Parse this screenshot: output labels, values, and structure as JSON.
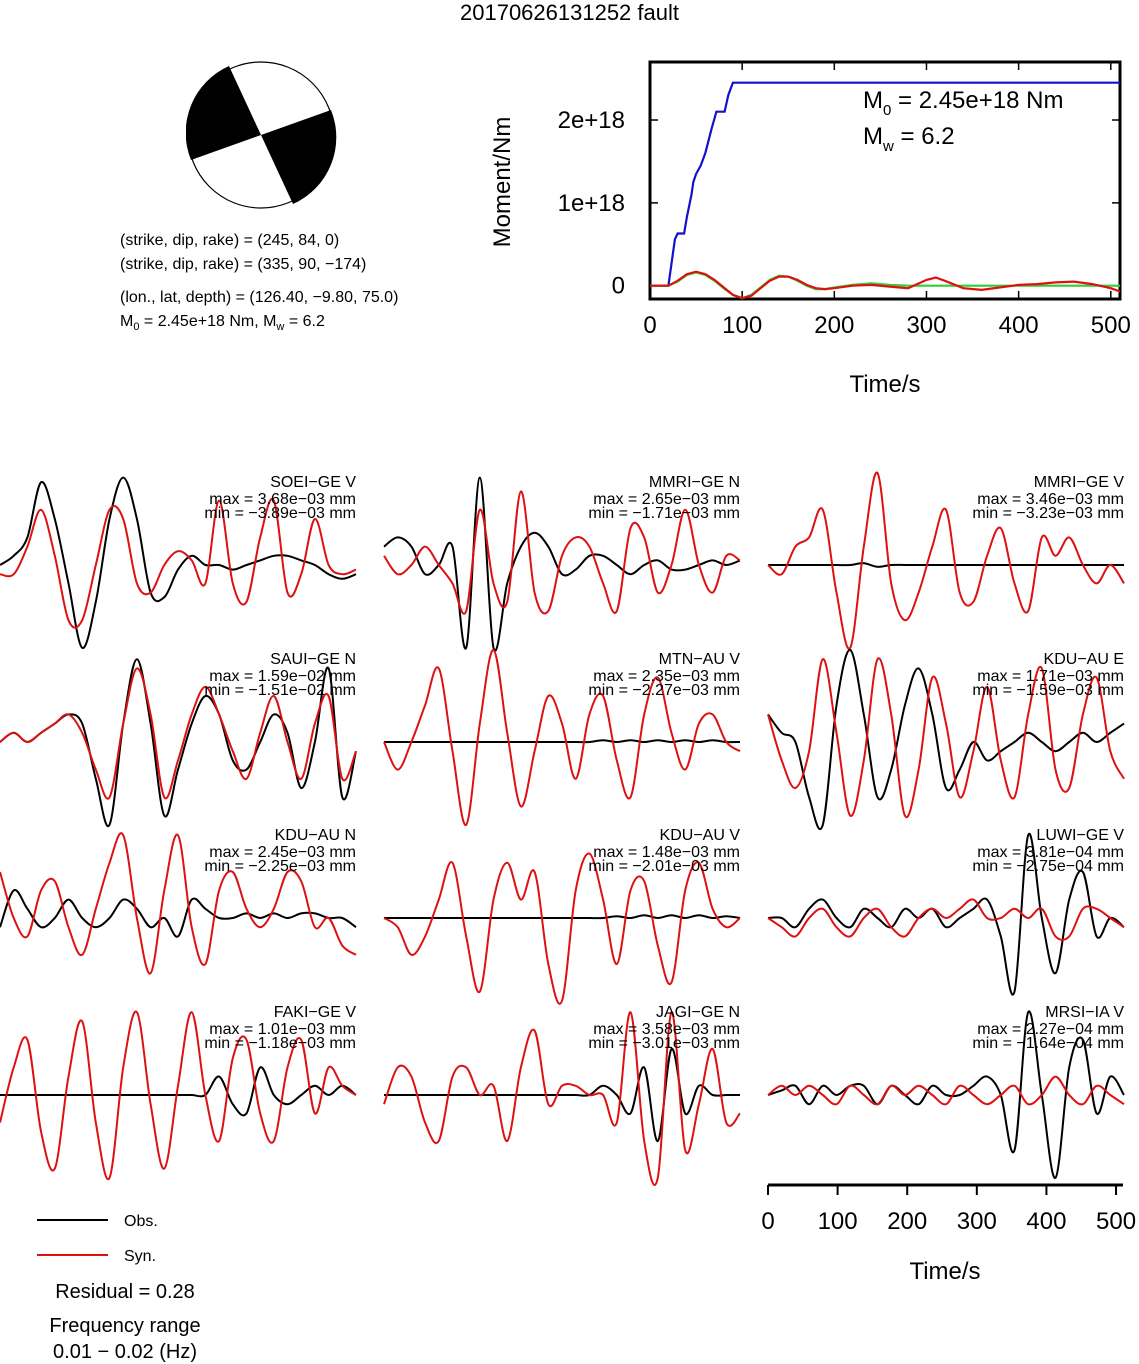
{
  "title": "20170626131252 fault",
  "focal": {
    "line1": "(strike, dip, rake) = (245, 84, 0)",
    "line2": "(strike, dip, rake) = (335, 90, −174)",
    "line3": "(lon., lat, depth) = (126.40, −9.80, 75.0)",
    "m0_prefix": "M",
    "m0_sub": "0",
    "m0_rest": " = 2.45e+18 Nm, M",
    "mw_sub": "w",
    "mw_rest": " = 6.2"
  },
  "moment_plot": {
    "ylabel": "Moment/Nm",
    "xlabel": "Time/s",
    "xticks": [
      "0",
      "100",
      "200",
      "300",
      "400",
      "500"
    ],
    "yticks": [
      "0",
      "1e+18",
      "2e+18"
    ],
    "m0_label_prefix": "M",
    "m0_label_sub": "0",
    "m0_label_value": " = 2.45e+18 Nm",
    "mw_label_prefix": "M",
    "mw_label_sub": "w",
    "mw_label_value": " = 6.2"
  },
  "colors": {
    "obs": "#000000",
    "syn": "#dd1111",
    "cumulative": "#1111cc",
    "green_rate": "#33cc33",
    "beach_fill": "#000000"
  },
  "stations": [
    {
      "name": "SOEI−GE V",
      "max": "max = 3.68e−03 mm",
      "min": "min = −3.89e−03 mm"
    },
    {
      "name": "MMRI−GE N",
      "max": "max = 2.65e−03 mm",
      "min": "min = −1.71e−03 mm"
    },
    {
      "name": "MMRI−GE V",
      "max": "max = 3.46e−03 mm",
      "min": "min = −3.23e−03 mm"
    },
    {
      "name": "SAUI−GE N",
      "max": "max = 1.59e−02 mm",
      "min": "min = −1.51e−02 mm"
    },
    {
      "name": "MTN−AU V",
      "max": "max = 2.35e−03 mm",
      "min": "min = −2.27e−03 mm"
    },
    {
      "name": "KDU−AU E",
      "max": "max = 1.71e−03 mm",
      "min": "min = −1.59e−03 mm"
    },
    {
      "name": "KDU−AU N",
      "max": "max = 2.45e−03 mm",
      "min": "min = −2.25e−03 mm"
    },
    {
      "name": "KDU−AU V",
      "max": "max = 1.48e−03 mm",
      "min": "min = −2.01e−03 mm"
    },
    {
      "name": "LUWI−GE V",
      "max": "max = 3.81e−04 mm",
      "min": "min = −2.75e−04 mm"
    },
    {
      "name": "FAKI−GE V",
      "max": "max = 1.01e−03 mm",
      "min": "min = −1.18e−03 mm"
    },
    {
      "name": "JAGI−GE N",
      "max": "max = 3.58e−03 mm",
      "min": "min = −3.01e−03 mm"
    },
    {
      "name": "MRSI−IA V",
      "max": "max = 2.27e−04 mm",
      "min": "min = −1.64e−04 mm"
    }
  ],
  "waveform_axis": {
    "xticks": [
      "0",
      "100",
      "200",
      "300",
      "400",
      "500"
    ],
    "xlabel": "Time/s"
  },
  "legend": {
    "obs": "Obs.",
    "syn": "Syn."
  },
  "footer": {
    "residual": "Residual = 0.28",
    "freq_label": "Frequency range",
    "freq_value": "0.01 − 0.02 (Hz)"
  },
  "chart_data": [
    {
      "type": "line",
      "title": "",
      "xlabel": "Time/s",
      "ylabel": "Moment/Nm",
      "xlim": [
        0,
        510
      ],
      "ylim": [
        -1.6e+17,
        2.7e+18
      ],
      "series": [
        {
          "name": "",
          "x": [
            0,
            20,
            27,
            30,
            37,
            40,
            45,
            47,
            50,
            55,
            60,
            67,
            72,
            76,
            81,
            85,
            90,
            510
          ],
          "y": [
            0,
            0,
            5.6e+17,
            6.3e+17,
            6.3e+17,
            8.3e+17,
            1.1e+18,
            1.25e+18,
            1.35e+18,
            1.45e+18,
            1.6e+18,
            1.9e+18,
            2.1e+18,
            2.1e+18,
            2.1e+18,
            2.3e+18,
            2.45e+18,
            2.45e+18
          ]
        },
        {
          "name": "",
          "x": [
            0,
            20,
            30,
            40,
            50,
            60,
            70,
            80,
            90,
            100,
            110,
            120,
            130,
            140,
            150,
            160,
            170,
            180,
            190,
            200,
            220,
            240,
            260,
            280,
            300,
            320,
            340,
            360,
            380,
            400,
            420,
            440,
            460,
            480,
            500,
            510
          ],
          "y": [
            0,
            0,
            5e+16,
            1.3e+17,
            1.6e+17,
            1.3e+17,
            6e+16,
            -3e+16,
            -1.1e+17,
            -1.5e+17,
            -1.1e+17,
            -2e+16,
            7e+16,
            1.2e+17,
            1.1e+17,
            6e+16,
            0,
            -4e+16,
            -4e+16,
            -2e+16,
            1e+16,
            3e+16,
            1e+16,
            0,
            0,
            0,
            0,
            0,
            0,
            0,
            0,
            0,
            0,
            0,
            0,
            0
          ]
        },
        {
          "name": "",
          "x": [
            0,
            20,
            30,
            40,
            50,
            60,
            70,
            80,
            90,
            100,
            110,
            120,
            130,
            140,
            150,
            160,
            170,
            180,
            190,
            200,
            220,
            240,
            260,
            280,
            300,
            310,
            320,
            340,
            360,
            380,
            400,
            420,
            440,
            460,
            480,
            500,
            510
          ],
          "y": [
            0,
            0,
            6e+16,
            1.4e+17,
            1.7e+17,
            1.4e+17,
            7e+16,
            -2e+16,
            -1.1e+17,
            -1.5e+17,
            -1.2e+17,
            -3e+16,
            6e+16,
            1.1e+17,
            1.1e+17,
            7e+16,
            1e+16,
            -3e+16,
            -4e+16,
            -3e+16,
            0,
            1e+16,
            -1e+16,
            -3e+16,
            7e+16,
            1e+17,
            6e+16,
            -3e+16,
            -5e+16,
            -2e+16,
            1e+16,
            2e+16,
            4e+16,
            5e+16,
            2e+16,
            -3e+16,
            -7e+16
          ]
        }
      ]
    },
    {
      "type": "line",
      "title": "",
      "xlabel": "Time/s",
      "ylabel": "",
      "xlim": [
        0,
        510
      ],
      "panels": [
        {
          "station": "SOEI−GE V",
          "obs": [
            0,
            0.1,
            0.3,
            0.9,
            0.5,
            -0.2,
            -0.9,
            -0.4,
            0.5,
            0.95,
            0.5,
            -0.3,
            -0.35,
            -0.05,
            0.1,
            0.0,
            0.0,
            -0.05,
            0.0,
            0.05,
            0.1,
            0.1,
            0.05,
            0.0,
            -0.1,
            -0.15,
            -0.1
          ],
          "syn": [
            -0.1,
            -0.1,
            0.2,
            0.6,
            0.1,
            -0.6,
            -0.6,
            0.0,
            0.6,
            0.5,
            -0.2,
            -0.3,
            0.0,
            0.15,
            0.05,
            -0.2,
            0.7,
            -0.2,
            -0.4,
            0.3,
            0.7,
            -0.3,
            -0.1,
            0.5,
            0.0,
            -0.1,
            -0.05
          ]
        },
        {
          "station": "MMRI−GE N",
          "obs": [
            0.2,
            0.3,
            0.2,
            -0.1,
            0.0,
            0.2,
            -0.9,
            0.95,
            -0.9,
            -0.2,
            0.2,
            0.35,
            0.2,
            -0.1,
            -0.05,
            0.1,
            0.1,
            0.0,
            -0.1,
            0.0,
            0.05,
            -0.05,
            -0.05,
            0.0,
            0.05,
            0.0,
            0.05
          ],
          "syn": [
            0.1,
            -0.1,
            0.0,
            0.2,
            0.0,
            -0.2,
            -0.5,
            0.6,
            -0.2,
            -0.4,
            0.8,
            -0.3,
            -0.5,
            0.1,
            0.3,
            0.2,
            -0.2,
            -0.5,
            0.4,
            0.3,
            -0.3,
            0.0,
            0.6,
            0.0,
            -0.3,
            0.1,
            0.05
          ]
        },
        {
          "station": "MMRI−GE V",
          "obs": [
            0,
            0,
            0,
            0,
            0,
            0,
            0,
            0.02,
            -0.02,
            0,
            0,
            0,
            0,
            0,
            0,
            0,
            0,
            0,
            0,
            0,
            0,
            0,
            0,
            0,
            0,
            0,
            0
          ],
          "syn": [
            0,
            -0.1,
            0.2,
            0.3,
            0.6,
            -0.3,
            -0.9,
            0.2,
            1.0,
            -0.2,
            -0.6,
            -0.3,
            0.2,
            0.6,
            -0.3,
            -0.4,
            0.1,
            0.4,
            -0.2,
            -0.5,
            0.3,
            0.1,
            0.3,
            0.0,
            -0.2,
            0.0,
            -0.2
          ]
        },
        {
          "station": "SAUI−GE N",
          "obs": [
            0,
            0.1,
            0.0,
            0.1,
            0.2,
            0.3,
            0.2,
            -0.4,
            -0.9,
            0.2,
            0.9,
            0.2,
            -0.8,
            -0.3,
            0.2,
            0.5,
            0.3,
            -0.2,
            -0.3,
            0.0,
            0.3,
            0.1,
            -0.5,
            0.0,
            0.8,
            -0.6,
            -0.1
          ],
          "syn": [
            0,
            0.1,
            0.0,
            0.1,
            0.2,
            0.3,
            0.1,
            -0.3,
            -0.6,
            0.2,
            0.8,
            0.3,
            -0.6,
            -0.2,
            0.3,
            0.6,
            0.3,
            -0.1,
            -0.4,
            0.1,
            0.5,
            0.0,
            -0.4,
            0.2,
            0.5,
            -0.4,
            -0.1
          ]
        },
        {
          "station": "MTN−AU V",
          "obs": [
            0,
            0,
            0,
            0,
            0,
            0,
            0,
            0,
            0,
            0,
            0,
            0,
            0,
            0,
            0,
            0,
            0.02,
            0,
            0.02,
            0,
            0.02,
            0,
            0.02,
            0,
            0.02,
            0,
            0
          ],
          "syn": [
            0,
            -0.3,
            0.0,
            0.4,
            0.8,
            -0.1,
            -0.9,
            0.2,
            1.0,
            0.1,
            -0.7,
            -0.1,
            0.5,
            0.2,
            -0.4,
            0.3,
            0.5,
            -0.2,
            -0.6,
            0.3,
            0.7,
            0.1,
            -0.3,
            0.2,
            0.3,
            0.0,
            -0.1
          ]
        },
        {
          "station": "KDU−AU E",
          "obs": [
            0.3,
            0.1,
            0.0,
            -0.6,
            -0.9,
            0.4,
            1.0,
            0.3,
            -0.6,
            -0.3,
            0.4,
            0.8,
            0.3,
            -0.5,
            -0.3,
            0.0,
            -0.2,
            -0.1,
            0.0,
            0.1,
            0.0,
            -0.1,
            0.0,
            0.1,
            0.0,
            0.1,
            0.2
          ],
          "syn": [
            0.3,
            -0.2,
            -0.5,
            -0.1,
            0.9,
            0.1,
            -0.8,
            -0.2,
            0.9,
            0.3,
            -0.8,
            -0.3,
            0.7,
            0.2,
            -0.6,
            -0.1,
            0.6,
            -0.2,
            -0.6,
            0.3,
            0.8,
            -0.3,
            -0.5,
            0.3,
            0.7,
            -0.1,
            -0.4
          ]
        },
        {
          "station": "KDU−AU N",
          "obs": [
            -0.1,
            0.3,
            0.1,
            -0.1,
            0.0,
            0.2,
            0.0,
            -0.1,
            0.0,
            0.2,
            0.1,
            -0.1,
            0.0,
            -0.2,
            0.2,
            0.1,
            0.0,
            0.0,
            0.05,
            0.0,
            0.05,
            0.0,
            0.05,
            0.05,
            0.0,
            0.0,
            -0.1
          ],
          "syn": [
            0.5,
            0.0,
            -0.2,
            0.3,
            0.4,
            -0.1,
            -0.4,
            0.1,
            0.6,
            0.9,
            0.0,
            -0.6,
            0.3,
            0.9,
            -0.1,
            -0.5,
            0.3,
            0.5,
            0.1,
            -0.1,
            0.1,
            0.5,
            0.4,
            -0.1,
            0.0,
            -0.3,
            -0.4
          ]
        },
        {
          "station": "KDU−AU V",
          "obs": [
            0,
            0,
            0,
            0,
            0,
            0,
            0,
            0,
            0,
            0,
            0,
            0,
            0,
            0,
            0,
            0,
            0,
            0.02,
            0,
            0.03,
            0,
            0.03,
            0,
            0.03,
            0,
            0.02,
            0
          ],
          "syn": [
            0,
            -0.1,
            -0.4,
            -0.2,
            0.2,
            0.6,
            -0.2,
            -0.8,
            0.2,
            0.6,
            0.2,
            0.5,
            -0.5,
            -0.9,
            0.3,
            0.7,
            0.2,
            -0.5,
            0.3,
            0.4,
            -0.3,
            -0.7,
            0.3,
            0.6,
            0.1,
            -0.1,
            0.0
          ]
        },
        {
          "station": "LUWI−GE V",
          "obs": [
            0,
            0.0,
            -0.1,
            0.1,
            0.2,
            0.0,
            -0.1,
            0.1,
            0.0,
            -0.1,
            0.1,
            0.0,
            0.1,
            -0.1,
            0.0,
            0.1,
            0.2,
            -0.2,
            -0.8,
            0.9,
            0.0,
            -0.6,
            0.2,
            0.5,
            -0.2,
            0.0,
            -0.1
          ],
          "syn": [
            0,
            -0.1,
            -0.2,
            0.0,
            0.1,
            -0.1,
            -0.2,
            0.0,
            0.1,
            -0.1,
            -0.2,
            0.0,
            0.1,
            0.0,
            0.1,
            0.2,
            0.0,
            0.0,
            0.1,
            0.0,
            0.1,
            -0.2,
            -0.2,
            0.1,
            0.1,
            0.0,
            -0.1
          ]
        },
        {
          "station": "FAKI−GE V",
          "obs": [
            0,
            0,
            0,
            0,
            0,
            0,
            0,
            0,
            0,
            0,
            0,
            0,
            0,
            0,
            0,
            0.0,
            0.2,
            -0.1,
            -0.2,
            0.3,
            0.0,
            -0.1,
            0.0,
            0.1,
            0.0,
            0.1,
            0.0
          ],
          "syn": [
            -0.3,
            0.3,
            0.6,
            -0.4,
            -0.8,
            0.2,
            0.8,
            -0.3,
            -0.9,
            0.3,
            0.9,
            -0.1,
            -0.8,
            0.1,
            0.9,
            0.0,
            -0.5,
            0.4,
            0.6,
            -0.2,
            -0.5,
            0.3,
            0.6,
            -0.2,
            0.3,
            0.1,
            0.0
          ]
        },
        {
          "station": "JAGI−GE N",
          "obs": [
            0,
            0,
            0,
            0,
            0,
            0,
            0,
            0,
            0,
            0,
            0,
            0,
            0,
            0,
            0,
            0.0,
            0.1,
            0.0,
            -0.2,
            0.3,
            -0.5,
            0.5,
            -0.2,
            0.1,
            0.0,
            0.0,
            0.0
          ],
          "syn": [
            -0.1,
            0.3,
            0.2,
            -0.3,
            -0.5,
            0.2,
            0.3,
            0.0,
            0.1,
            -0.5,
            0.3,
            0.7,
            -0.1,
            0.1,
            0.1,
            0.0,
            0.0,
            -0.3,
            0.9,
            -0.5,
            -0.9,
            0.9,
            -0.6,
            -0.1,
            0.5,
            -0.3,
            -0.2
          ]
        },
        {
          "station": "MRSI−IA V",
          "obs": [
            0,
            0.05,
            0.1,
            -0.1,
            0.1,
            0.0,
            0.1,
            0.1,
            -0.1,
            0.1,
            0.0,
            -0.1,
            0.1,
            0.0,
            0.0,
            0.1,
            0.2,
            0.0,
            -0.6,
            0.9,
            0.0,
            -0.9,
            0.3,
            0.6,
            -0.2,
            0.2,
            0.0
          ],
          "syn": [
            0,
            0.1,
            0.0,
            0.1,
            0.0,
            -0.1,
            0.1,
            0.0,
            -0.1,
            0.1,
            0.0,
            0.1,
            0.0,
            -0.1,
            0.1,
            0.0,
            -0.1,
            0.0,
            0.1,
            -0.1,
            0.0,
            0.2,
            0.0,
            -0.1,
            0.1,
            0.0,
            -0.1
          ]
        }
      ]
    }
  ]
}
